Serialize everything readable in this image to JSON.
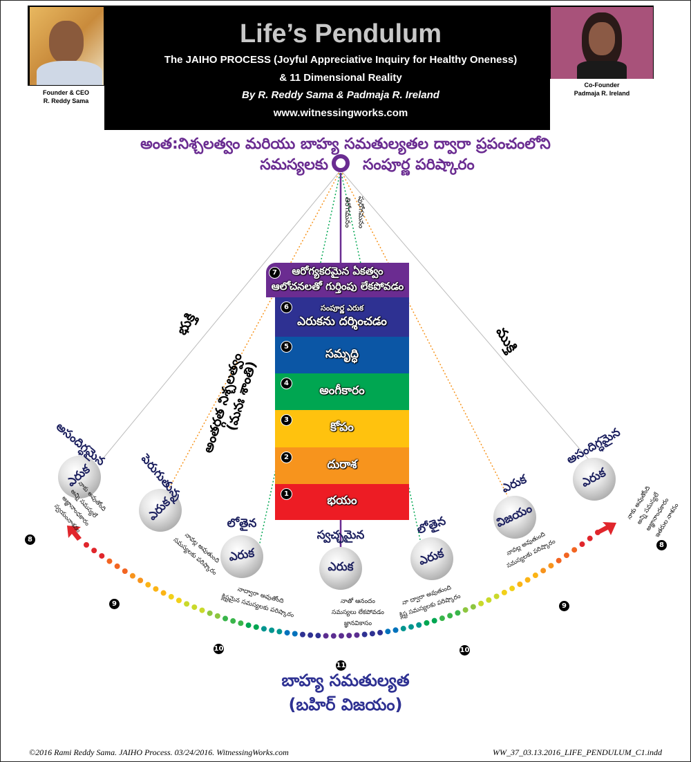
{
  "header": {
    "title": "Life’s Pendulum",
    "subtitle1": "The JAIHO PROCESS (Joyful Appreciative Inquiry for Healthy Oneness)",
    "subtitle2": "& 11 Dimensional Reality",
    "authors": "By R. Reddy Sama & Padmaja R. Ireland",
    "website": "www.witnessingworks.com",
    "left_caption1": "Founder & CEO",
    "left_caption2": "R. Reddy Sama",
    "right_caption1": "Co-Founder",
    "right_caption2": "Padmaja R. Ireland"
  },
  "top_heading": {
    "line1": "అంత:నిశ్చలత్వం మరియు బాహ్య సమతుల్యతల ద్వారా ప్రపంచంలోని",
    "line2_left": "సమస్యలకు",
    "line2_right": "సంపూర్ణ పరిష్కారం"
  },
  "vertical_labels": {
    "left": "తిరోగమనం",
    "right": "పురోగమనం"
  },
  "side_labels": {
    "left": "భుక్తి",
    "right": "ముక్తి",
    "inner1": "అంతర్గత నిశ్చలత్వం",
    "inner2": "(మనః శాంతి)"
  },
  "levels": [
    {
      "num": "7",
      "label": "ఆరోగ్యకరమైన ఏకత్వం",
      "sub": "ఆలోచనలతో గుర్తింపు లేకపోవడం",
      "color": "#6b2c91"
    },
    {
      "num": "6",
      "label": "ఎరుకను దర్శించడం",
      "sub": "సంపూర్ణ ఎరుక",
      "color": "#2e3192"
    },
    {
      "num": "5",
      "label": "సమృద్ధి",
      "color": "#0b56a5"
    },
    {
      "num": "4",
      "label": "అంగీకారం",
      "color": "#00a651"
    },
    {
      "num": "3",
      "label": "కోపం",
      "color": "#ffc20e"
    },
    {
      "num": "2",
      "label": "దురాశ",
      "color": "#f7941d"
    },
    {
      "num": "1",
      "label": "భయం",
      "color": "#ed1c24"
    }
  ],
  "balls": [
    {
      "title": "అసందిగ్ధమైన",
      "ball": "ఎరుక",
      "lines": [
        "నాకు అవుతోంది",
        "అన్ని సమస్యలే",
        "అజ్ఞానాంధకారం",
        "స్వయంనాశనం"
      ]
    },
    {
      "title": "పెరుగుతున్న",
      "ball": "ఎరుక",
      "lines": [
        "నావల్ల అవుతుంది",
        "సమస్యలకు పరిష్కారం"
      ]
    },
    {
      "title": "లోతైన",
      "ball": "ఎరుక",
      "lines": [
        "నాద్వారా అవుతోంది",
        "క్లిష్టమైన సమస్యలకు పరిష్కారం"
      ]
    },
    {
      "title": "స్వచ్ఛమైన",
      "ball": "ఎరుక",
      "lines": [
        "నాతో ఆనందం",
        "సమస్యలు లేకపోవడం",
        "జ్ఞానవికాసం"
      ]
    },
    {
      "title": "లోతైన",
      "ball": "ఎరుక",
      "lines": [
        "నా ద్వారా అవుతుంది",
        "క్లిష్ట సమస్యలకు పరిష్కారం"
      ]
    },
    {
      "title": "ఎరుక",
      "ball": "విజయం",
      "lines": [
        "నావల్ల అవుతుంది",
        "సమస్యలకు పరిష్కారం"
      ]
    },
    {
      "title": "అసందిగ్ధమైన",
      "ball": "ఎరుక",
      "lines": [
        "నాకు అవుతోంది",
        "అన్ని సమస్యలే",
        "అజ్ఞానాంధకారం",
        "ఇతరుల నాశనం"
      ]
    }
  ],
  "arc_numbers": [
    "8",
    "9",
    "10",
    "11",
    "10",
    "9",
    "8"
  ],
  "bottom_heading": {
    "line1": "బాహ్య సమతుల్యత",
    "line2": "(బహిర్ విజయం)"
  },
  "footer": {
    "left": "©2016 Rami Reddy Sama.  JAIHO Process. 03/24/2016.  WitnessingWorks.com",
    "right": "WW_37_03.13.2016_LIFE_PENDULUM_C1.indd"
  },
  "colors": {
    "purple": "#6a2c91",
    "navy": "#2e3192",
    "arrow": "#e0262c"
  }
}
